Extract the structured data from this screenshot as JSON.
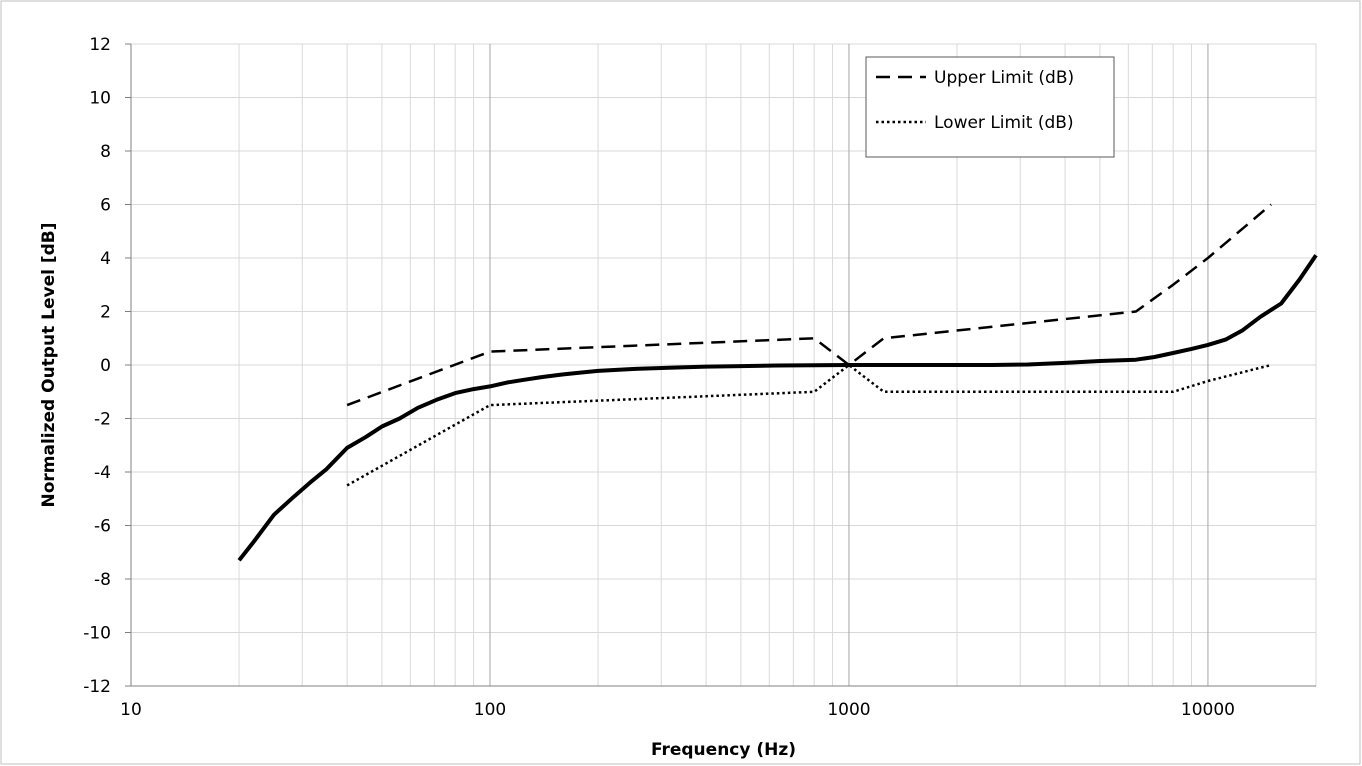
{
  "chart_data": {
    "type": "line",
    "title": "",
    "xlabel": "Frequency (Hz)",
    "ylabel": "Normalized Output Level [dB]",
    "x_scale": "log",
    "xlim": [
      10,
      20000
    ],
    "ylim": [
      -12,
      12
    ],
    "x_ticks": [
      "10",
      "100",
      "1000",
      "10000"
    ],
    "y_ticks": [
      "12",
      "10",
      "8",
      "6",
      "4",
      "2",
      "0",
      "-2",
      "-4",
      "-6",
      "-8",
      "-10",
      "-12"
    ],
    "grid": true,
    "legend_position": "top-right",
    "series": [
      {
        "name": "",
        "style": "solid",
        "color": "#000000",
        "x": [
          20,
          22,
          25,
          28,
          31.5,
          35,
          40,
          45,
          50,
          56,
          63,
          71,
          80,
          90,
          100,
          112,
          125,
          140,
          160,
          180,
          200,
          250,
          315,
          400,
          500,
          630,
          800,
          1000,
          1250,
          1600,
          2000,
          2500,
          3150,
          4000,
          5000,
          6300,
          7100,
          8000,
          9000,
          10000,
          11200,
          12500,
          14000,
          16000,
          18000,
          20000
        ],
        "y": [
          -7.3,
          -6.6,
          -5.6,
          -5.0,
          -4.4,
          -3.9,
          -3.1,
          -2.7,
          -2.3,
          -2.0,
          -1.6,
          -1.3,
          -1.05,
          -0.9,
          -0.8,
          -0.65,
          -0.55,
          -0.45,
          -0.35,
          -0.28,
          -0.22,
          -0.15,
          -0.1,
          -0.06,
          -0.04,
          -0.02,
          -0.01,
          0,
          0,
          0,
          0,
          0,
          0.02,
          0.08,
          0.15,
          0.2,
          0.3,
          0.45,
          0.6,
          0.75,
          0.95,
          1.3,
          1.8,
          2.3,
          3.2,
          4.1
        ]
      },
      {
        "name": "Upper Limit (dB)",
        "style": "dashed",
        "color": "#000000",
        "x": [
          40,
          100,
          800,
          1000,
          1250,
          6300,
          8000,
          10000,
          15000
        ],
        "y": [
          -1.5,
          0.5,
          1.0,
          0,
          1.0,
          2.0,
          3.0,
          4.0,
          6.0
        ]
      },
      {
        "name": "Lower Limit (dB)",
        "style": "dotted",
        "color": "#000000",
        "x": [
          40,
          100,
          800,
          1000,
          1250,
          8000,
          10000,
          15000
        ],
        "y": [
          -4.5,
          -1.5,
          -1.0,
          0,
          -1.0,
          -1.0,
          -0.6,
          0
        ]
      }
    ]
  }
}
